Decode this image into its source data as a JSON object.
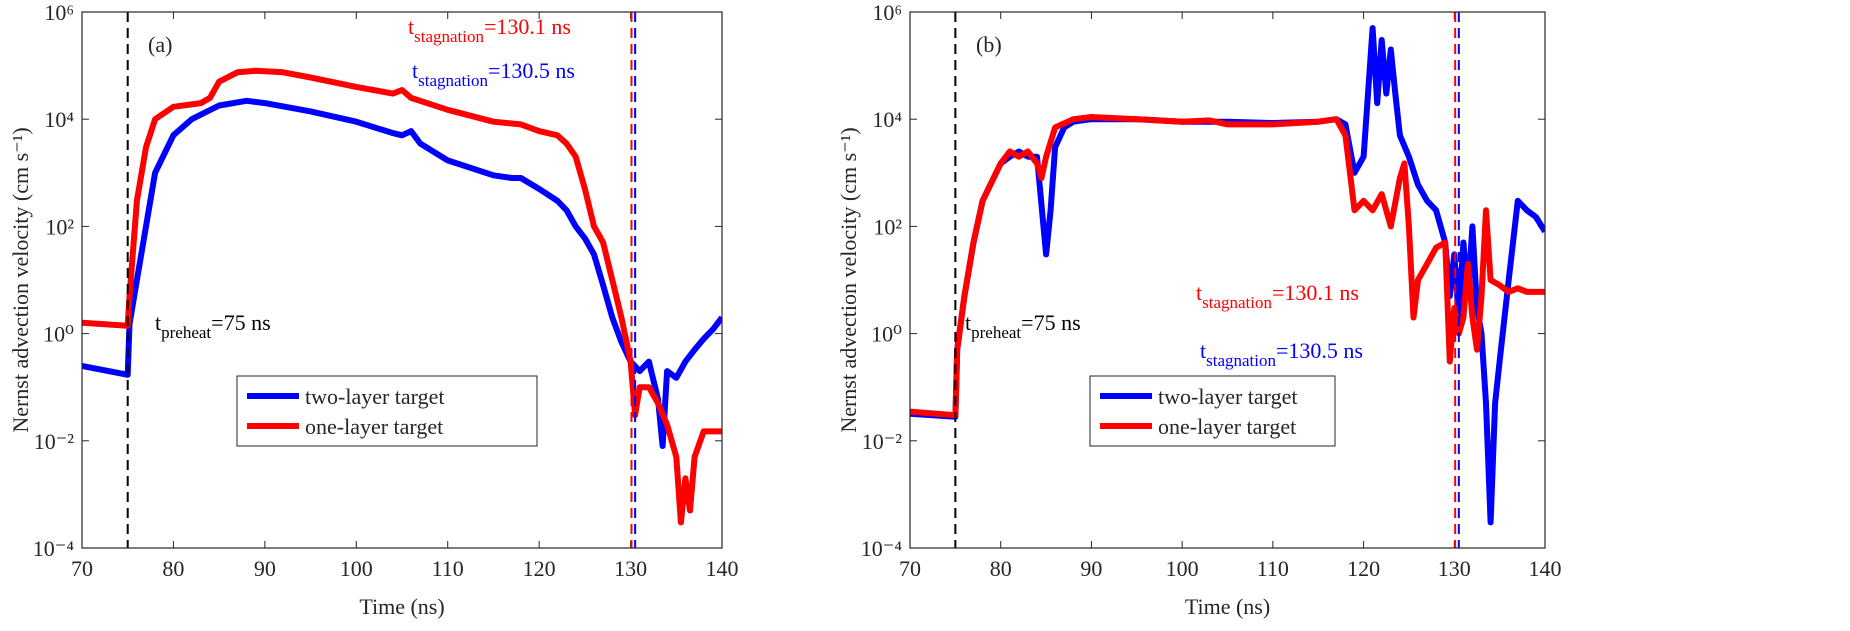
{
  "chart_data": [
    {
      "type": "line",
      "ylog": true,
      "panel_label": "(a)",
      "xlabel": "Time (ns)",
      "ylabel": "Nernst advection velocity (cm s⁻¹)",
      "xlim": [
        70,
        140
      ],
      "ylim": [
        0.0001,
        1000000
      ],
      "xticks": [
        70,
        80,
        90,
        100,
        110,
        120,
        130,
        140
      ],
      "yticks": [
        {
          "value": 0.0001,
          "label": "10⁻⁴"
        },
        {
          "value": 0.01,
          "label": "10⁻²"
        },
        {
          "value": 1,
          "label": "10⁰"
        },
        {
          "value": 100,
          "label": "10²"
        },
        {
          "value": 10000,
          "label": "10⁴"
        },
        {
          "value": 1000000,
          "label": "10⁶"
        }
      ],
      "legend": "lower center",
      "series": [
        {
          "name": "two-layer target",
          "color": "#0000ff",
          "x": [
            70,
            75,
            75.2,
            76,
            77,
            78,
            80,
            82,
            85,
            88,
            90,
            95,
            100,
            104,
            105,
            106,
            107,
            110,
            115,
            117,
            118,
            120,
            122,
            123,
            124,
            125,
            126,
            127,
            128,
            129,
            130,
            131,
            132,
            133,
            133.5,
            134,
            135,
            136,
            137,
            138,
            139,
            140
          ],
          "values": [
            0.25,
            0.17,
            1.5,
            10,
            100,
            1000,
            5000,
            10000,
            18000,
            22000,
            20000,
            14000,
            9000,
            5500,
            5000,
            6000,
            3500,
            1700,
            900,
            800,
            800,
            500,
            300,
            200,
            100,
            60,
            30,
            8,
            2,
            0.7,
            0.3,
            0.2,
            0.3,
            0.06,
            0.008,
            0.2,
            0.15,
            0.3,
            0.5,
            0.8,
            1.2,
            2
          ]
        },
        {
          "name": "one-layer target",
          "color": "#ff0000",
          "x": [
            70,
            75,
            75.2,
            76,
            77,
            78,
            80,
            83,
            84,
            85,
            87,
            89,
            92,
            95,
            100,
            104,
            105,
            106,
            110,
            115,
            118,
            120,
            122,
            123,
            124,
            125,
            126,
            127,
            128,
            129,
            130,
            130.5,
            131,
            132,
            133,
            134,
            135,
            135.5,
            136,
            136.5,
            137,
            138,
            139,
            140
          ],
          "values": [
            1.6,
            1.4,
            5,
            300,
            3000,
            10000,
            17000,
            20000,
            25000,
            50000,
            75000,
            80000,
            75000,
            60000,
            40000,
            30000,
            35000,
            25000,
            15000,
            9000,
            8000,
            6000,
            5000,
            3500,
            2000,
            500,
            100,
            50,
            10,
            2,
            0.3,
            0.03,
            0.1,
            0.1,
            0.05,
            0.02,
            0.005,
            0.0003,
            0.002,
            0.0005,
            0.005,
            0.015,
            0.015,
            0.015
          ]
        }
      ],
      "vlines": [
        {
          "x": 75,
          "color": "#000000"
        },
        {
          "x": 130.1,
          "color": "#ff0000"
        },
        {
          "x": 130.5,
          "color": "#0000ff"
        }
      ],
      "annotations": [
        {
          "base": "t",
          "sub": "preheat",
          "text": "=75 ns",
          "color": "#000000"
        },
        {
          "base": "t",
          "sub": "stagnation",
          "text": "=130.1 ns",
          "color": "#ff0000"
        },
        {
          "base": "t",
          "sub": "stagnation",
          "text": "=130.5 ns",
          "color": "#0000ff"
        }
      ]
    },
    {
      "type": "line",
      "ylog": true,
      "panel_label": "(b)",
      "xlabel": "Time (ns)",
      "ylabel": "Nernst advection velocity (cm s⁻¹)",
      "xlim": [
        70,
        140
      ],
      "ylim": [
        0.0001,
        1000000
      ],
      "xticks": [
        70,
        80,
        90,
        100,
        110,
        120,
        130,
        140
      ],
      "yticks": [
        {
          "value": 0.0001,
          "label": "10⁻⁴"
        },
        {
          "value": 0.01,
          "label": "10⁻²"
        },
        {
          "value": 1,
          "label": "10⁰"
        },
        {
          "value": 100,
          "label": "10²"
        },
        {
          "value": 10000,
          "label": "10⁴"
        },
        {
          "value": 1000000,
          "label": "10⁶"
        }
      ],
      "legend": "lower center",
      "series": [
        {
          "name": "two-layer target",
          "color": "#0000ff",
          "x": [
            70,
            75,
            75.2,
            76,
            77,
            78,
            80,
            81,
            82,
            83,
            84,
            85,
            85.5,
            86,
            87,
            88,
            90,
            95,
            100,
            105,
            110,
            115,
            117,
            118,
            119,
            120,
            121,
            121.5,
            122,
            122.5,
            123,
            123.5,
            124,
            125,
            126,
            127,
            128,
            129,
            129.5,
            130,
            130.5,
            131,
            131.5,
            132,
            132.5,
            133,
            133.5,
            134,
            134.5,
            135,
            136,
            137,
            138,
            139,
            140
          ],
          "values": [
            0.032,
            0.028,
            0.5,
            5,
            50,
            300,
            1500,
            2000,
            2500,
            2000,
            2000,
            30,
            200,
            3000,
            7000,
            9000,
            10000,
            10000,
            9000,
            9000,
            8500,
            9000,
            10000,
            8000,
            1000,
            2000,
            500000,
            20000,
            300000,
            30000,
            200000,
            30000,
            5000,
            2000,
            600,
            300,
            200,
            50,
            5,
            30,
            2,
            50,
            5,
            100,
            3,
            1,
            0.05,
            0.0003,
            0.05,
            0.3,
            10,
            300,
            200,
            150,
            80
          ]
        },
        {
          "name": "one-layer target",
          "color": "#ff0000",
          "x": [
            70,
            75,
            75.2,
            76,
            77,
            78,
            80,
            81,
            82,
            83,
            84,
            84.5,
            85,
            86,
            88,
            90,
            95,
            100,
            103,
            105,
            110,
            115,
            117,
            118,
            119,
            120,
            121,
            122,
            123,
            124,
            124.5,
            125,
            125.5,
            126,
            127,
            128,
            129,
            129.5,
            130,
            130.5,
            131,
            131.5,
            132,
            132.5,
            133,
            133.5,
            134,
            135,
            136,
            137,
            138,
            139,
            140
          ],
          "values": [
            0.035,
            0.03,
            0.5,
            5,
            50,
            300,
            1500,
            2500,
            2000,
            2500,
            1500,
            800,
            2000,
            7000,
            10000,
            11000,
            10000,
            9000,
            9500,
            8000,
            8000,
            9000,
            10000,
            5000,
            200,
            300,
            200,
            400,
            100,
            800,
            1500,
            100,
            2,
            10,
            20,
            40,
            50,
            0.3,
            3,
            1,
            2,
            20,
            2,
            0.5,
            5,
            200,
            10,
            8,
            6,
            7,
            6,
            6,
            6
          ]
        }
      ],
      "vlines": [
        {
          "x": 75,
          "color": "#000000"
        },
        {
          "x": 130.1,
          "color": "#ff0000"
        },
        {
          "x": 130.5,
          "color": "#0000ff"
        }
      ],
      "annotations": [
        {
          "base": "t",
          "sub": "preheat",
          "text": "=75 ns",
          "color": "#000000"
        },
        {
          "base": "t",
          "sub": "stagnation",
          "text": "=130.1 ns",
          "color": "#ff0000"
        },
        {
          "base": "t",
          "sub": "stagnation",
          "text": "=130.5 ns",
          "color": "#0000ff"
        }
      ]
    }
  ]
}
